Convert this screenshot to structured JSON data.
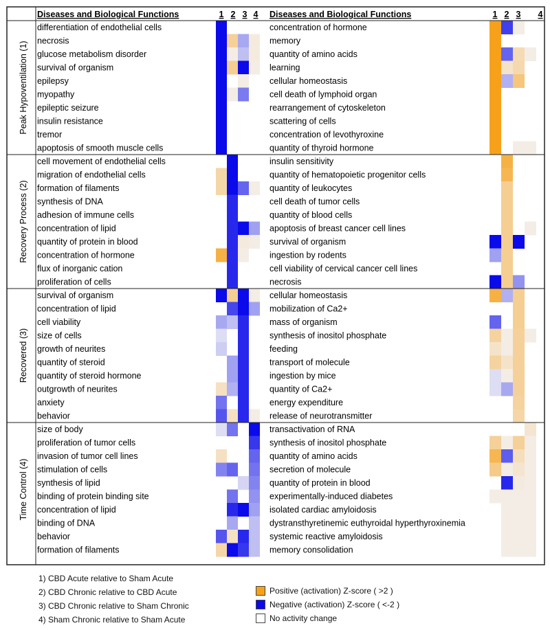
{
  "chart_data": {
    "type": "heatmap",
    "column_header": "Diseases and Biological Functions",
    "columns": [
      "1",
      "2",
      "3",
      "4"
    ],
    "groups": [
      {
        "name": "Peak Hypoventilation (1)",
        "left": [
          {
            "label": "differentiation of endothelial cells",
            "values": [
              -3,
              null,
              null,
              null
            ]
          },
          {
            "label": "necrosis",
            "values": [
              -3,
              1.2,
              -0.9,
              0.2
            ]
          },
          {
            "label": "glucose metabolism disorder",
            "values": [
              -3,
              0.1,
              -0.6,
              0.2
            ]
          },
          {
            "label": "survival of organism",
            "values": [
              -3,
              1.3,
              -3,
              0.1
            ]
          },
          {
            "label": "epilepsy",
            "values": [
              -3,
              null,
              0.1,
              null
            ]
          },
          {
            "label": "myopathy",
            "values": [
              -3,
              0.1,
              -1.5,
              null
            ]
          },
          {
            "label": "epileptic seizure",
            "values": [
              -3,
              null,
              null,
              null
            ]
          },
          {
            "label": "insulin resistance",
            "values": [
              -3,
              null,
              null,
              null
            ]
          },
          {
            "label": "tremor",
            "values": [
              -3,
              null,
              null,
              null
            ]
          },
          {
            "label": "apoptosis of smooth muscle cells",
            "values": [
              -3,
              null,
              null,
              null
            ]
          }
        ],
        "right": [
          {
            "label": "concentration of hormone",
            "values": [
              3,
              -2.3,
              0.1,
              null
            ]
          },
          {
            "label": "memory",
            "values": [
              3,
              null,
              null,
              null
            ]
          },
          {
            "label": "quantity of amino acids",
            "values": [
              3,
              -1.8,
              0.8,
              0.1
            ]
          },
          {
            "label": "learning",
            "values": [
              3,
              0.5,
              0.9,
              null
            ]
          },
          {
            "label": "cellular homeostasis",
            "values": [
              3,
              -0.8,
              1.6,
              null
            ]
          },
          {
            "label": "cell death of lymphoid organ",
            "values": [
              3,
              null,
              null,
              null
            ]
          },
          {
            "label": "rearrangement of cytoskeleton",
            "values": [
              3,
              null,
              null,
              null
            ]
          },
          {
            "label": "scattering of cells",
            "values": [
              3,
              null,
              null,
              null
            ]
          },
          {
            "label": "concentration of levothyroxine",
            "values": [
              3,
              null,
              null,
              null
            ]
          },
          {
            "label": "quantity of thyroid hormone",
            "values": [
              3,
              null,
              0.1,
              0.1
            ]
          }
        ]
      },
      {
        "name": "Recovery Process (2)",
        "left": [
          {
            "label": "cell movement of endothelial cells",
            "values": [
              null,
              -3,
              null,
              null
            ]
          },
          {
            "label": "migration of endothelial cells",
            "values": [
              1.0,
              -3,
              null,
              null
            ]
          },
          {
            "label": "formation of filaments",
            "values": [
              1.0,
              -3,
              -1.8,
              0.1
            ]
          },
          {
            "label": "synthesis of DNA",
            "values": [
              null,
              -2.6,
              null,
              null
            ]
          },
          {
            "label": "adhesion of immune cells",
            "values": [
              null,
              -2.6,
              null,
              null
            ]
          },
          {
            "label": "concentration of lipid",
            "values": [
              null,
              -2.6,
              -3,
              -1.0
            ]
          },
          {
            "label": "quantity of protein in blood",
            "values": [
              null,
              -2.6,
              0.2,
              0.1
            ]
          },
          {
            "label": "concentration of hormone",
            "values": [
              2.4,
              -2.6,
              0.1,
              null
            ]
          },
          {
            "label": "flux of inorganic cation",
            "values": [
              null,
              -2.6,
              null,
              null
            ]
          },
          {
            "label": "proliferation of cells",
            "values": [
              null,
              -2.6,
              null,
              null
            ]
          }
        ],
        "right": [
          {
            "label": "insulin sensitivity",
            "values": [
              null,
              2.4,
              null,
              null
            ]
          },
          {
            "label": "quantity of hematopoietic progenitor cells",
            "values": [
              null,
              2.2,
              null,
              null
            ]
          },
          {
            "label": "quantity of leukocytes",
            "values": [
              null,
              1.3,
              null,
              null
            ]
          },
          {
            "label": "cell death of tumor cells",
            "values": [
              null,
              1.3,
              null,
              null
            ]
          },
          {
            "label": "quantity of blood cells",
            "values": [
              null,
              1.3,
              null,
              null
            ]
          },
          {
            "label": "apoptosis of breast cancer cell lines",
            "values": [
              null,
              1.3,
              null,
              0.1
            ]
          },
          {
            "label": "survival of organism",
            "values": [
              -3,
              1.3,
              -3,
              null
            ]
          },
          {
            "label": "ingestion by rodents",
            "values": [
              -1.0,
              1.3,
              null,
              null
            ]
          },
          {
            "label": "cell viability of cervical cancer cell lines",
            "values": [
              null,
              1.3,
              null,
              null
            ]
          },
          {
            "label": "necrosis",
            "values": [
              -3,
              1.3,
              -1.2,
              null
            ]
          }
        ]
      },
      {
        "name": "Recovered (3)",
        "left": [
          {
            "label": "survival of organism",
            "values": [
              -3,
              1.3,
              -3,
              0.1
            ]
          },
          {
            "label": "concentration of lipid",
            "values": [
              null,
              -2.2,
              -3,
              -1.0
            ]
          },
          {
            "label": "cell viability",
            "values": [
              -0.9,
              -0.6,
              -2.6,
              null
            ]
          },
          {
            "label": "size of cells",
            "values": [
              -0.2,
              null,
              -2.6,
              null
            ]
          },
          {
            "label": "growth of neurites",
            "values": [
              -0.4,
              null,
              -2.6,
              null
            ]
          },
          {
            "label": "quantity of steroid",
            "values": [
              null,
              -1.0,
              -2.6,
              null
            ]
          },
          {
            "label": "quantity of steroid hormone",
            "values": [
              null,
              -1.0,
              -2.6,
              null
            ]
          },
          {
            "label": "outgrowth of neurites",
            "values": [
              0.6,
              -0.8,
              -2.6,
              null
            ]
          },
          {
            "label": "anxiety",
            "values": [
              -1.6,
              null,
              -2.6,
              null
            ]
          },
          {
            "label": "behavior",
            "values": [
              -2.0,
              0.6,
              -2.6,
              0.1
            ]
          }
        ],
        "right": [
          {
            "label": "cellular homeostasis",
            "values": [
              2.4,
              -0.8,
              1.3,
              null
            ]
          },
          {
            "label": "mobilization of Ca2+",
            "values": [
              null,
              null,
              1.3,
              null
            ]
          },
          {
            "label": "mass of organism",
            "values": [
              -1.8,
              null,
              1.3,
              null
            ]
          },
          {
            "label": "synthesis of inositol phosphate",
            "values": [
              1.1,
              0.1,
              1.2,
              0.1
            ]
          },
          {
            "label": "feeding",
            "values": [
              0.5,
              0.1,
              1.2,
              null
            ]
          },
          {
            "label": "transport of molecule",
            "values": [
              1.1,
              0.5,
              1.2,
              null
            ]
          },
          {
            "label": "ingestion by mice",
            "values": [
              -0.2,
              0.1,
              1.2,
              null
            ]
          },
          {
            "label": "quantity of Ca2+",
            "values": [
              -0.2,
              -0.9,
              1.2,
              null
            ]
          },
          {
            "label": "energy expenditure",
            "values": [
              null,
              null,
              1.1,
              null
            ]
          },
          {
            "label": "release of neurotransmitter",
            "values": [
              null,
              null,
              1.0,
              null
            ]
          }
        ]
      },
      {
        "name": "Time Control (4)",
        "left": [
          {
            "label": "size of body",
            "values": [
              -0.2,
              -1.6,
              null,
              -3
            ]
          },
          {
            "label": "proliferation of tumor cells",
            "values": [
              null,
              null,
              null,
              -2.4
            ]
          },
          {
            "label": "invasion of tumor cell lines",
            "values": [
              0.6,
              null,
              null,
              -1.8
            ]
          },
          {
            "label": "stimulation of cells",
            "values": [
              -1.4,
              -1.8,
              null,
              -1.6
            ]
          },
          {
            "label": "synthesis of lipid",
            "values": [
              null,
              null,
              -0.3,
              -1.4
            ]
          },
          {
            "label": "binding of protein binding site",
            "values": [
              null,
              -1.6,
              null,
              -1.2
            ]
          },
          {
            "label": "concentration of lipid",
            "values": [
              null,
              -2.6,
              -3,
              -1.0
            ]
          },
          {
            "label": "binding of DNA",
            "values": [
              null,
              -0.9,
              null,
              -0.6
            ]
          },
          {
            "label": "behavior",
            "values": [
              -2.0,
              0.6,
              -2.6,
              -0.6
            ]
          },
          {
            "label": "formation of filaments",
            "values": [
              1.0,
              -3,
              -2.4,
              -0.6
            ]
          }
        ],
        "right": [
          {
            "label": "transactivation of RNA",
            "values": [
              null,
              null,
              null,
              0.4
            ]
          },
          {
            "label": "synthesis of inositol phosphate",
            "values": [
              1.2,
              0.1,
              1.2,
              0.1
            ]
          },
          {
            "label": "quantity of amino acids",
            "values": [
              2.2,
              -1.9,
              0.7,
              0.1
            ]
          },
          {
            "label": "secretion of molecule",
            "values": [
              1.4,
              0.1,
              0.4,
              0.1
            ]
          },
          {
            "label": "quantity of protein in blood",
            "values": [
              null,
              -2.6,
              0.2,
              0.1
            ]
          },
          {
            "label": "experimentally-induced diabetes",
            "values": [
              0.1,
              0.1,
              0.1,
              0.1
            ]
          },
          {
            "label": "isolated cardiac amyloidosis",
            "values": [
              null,
              0.1,
              0.1,
              0.1
            ]
          },
          {
            "label": "dystransthyretinemic euthyroidal hyperthyroxinemia",
            "values": [
              null,
              0.1,
              0.1,
              0.1
            ]
          },
          {
            "label": "systemic reactive amyloidosis",
            "values": [
              null,
              0.1,
              0.1,
              0.1
            ]
          },
          {
            "label": "memory consolidation",
            "values": [
              null,
              0.1,
              0.1,
              0.1
            ]
          }
        ]
      }
    ]
  },
  "conditions": [
    "1) CBD Acute relative to Sham Acute",
    "2) CBD Chronic relative to CBD Acute",
    "3) CBD Chronic relative to Sham Chronic",
    "4) Sham Chronic relative to Sham Acute"
  ],
  "legend": {
    "positive": {
      "label": "Positive (activation) Z-score ( >2 )",
      "color": "#f7a11a"
    },
    "negative": {
      "label": "Negative (activation) Z-score ( <-2 )",
      "color": "#0a0aeb"
    },
    "none": {
      "label": "No activity change",
      "color": "#ffffff"
    }
  },
  "colors": {
    "neutral": "#f2f2f2",
    "grid": "#222222"
  }
}
